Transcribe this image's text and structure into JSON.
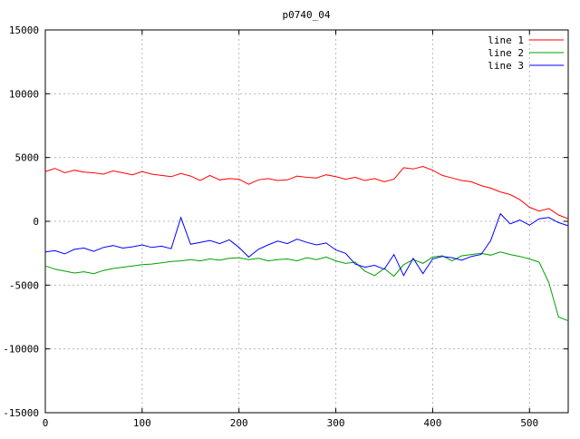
{
  "chart_data": {
    "type": "line",
    "title": "p0740_04",
    "xlabel": "",
    "ylabel": "",
    "xlim": [
      0,
      540
    ],
    "ylim": [
      -15000,
      15000
    ],
    "x_ticks": [
      0,
      100,
      200,
      300,
      400,
      500
    ],
    "y_ticks": [
      -15000,
      -10000,
      -5000,
      0,
      5000,
      10000,
      15000
    ],
    "grid": true,
    "grid_style": "dashed",
    "grid_color": "#b8b8b8",
    "border_color": "#000000",
    "background_color": "#ffffff",
    "legend_position": "top-right",
    "x": [
      0,
      10,
      20,
      30,
      40,
      50,
      60,
      70,
      80,
      90,
      100,
      110,
      120,
      130,
      140,
      150,
      160,
      170,
      180,
      190,
      200,
      210,
      220,
      230,
      240,
      250,
      260,
      270,
      280,
      290,
      300,
      310,
      320,
      330,
      340,
      350,
      360,
      370,
      380,
      390,
      400,
      410,
      420,
      430,
      440,
      450,
      460,
      470,
      480,
      490,
      500,
      510,
      520,
      530,
      540
    ],
    "series": [
      {
        "name": "line 1",
        "color": "#ff0000",
        "values": [
          3900,
          4150,
          3800,
          4000,
          3850,
          3800,
          3700,
          3950,
          3800,
          3650,
          3900,
          3700,
          3600,
          3500,
          3750,
          3550,
          3200,
          3600,
          3250,
          3350,
          3300,
          2900,
          3250,
          3350,
          3200,
          3250,
          3550,
          3450,
          3400,
          3650,
          3500,
          3300,
          3450,
          3200,
          3350,
          3100,
          3300,
          4200,
          4100,
          4300,
          4000,
          3600,
          3400,
          3200,
          3100,
          2800,
          2600,
          2300,
          2100,
          1700,
          1100,
          800,
          1000,
          500,
          200
        ]
      },
      {
        "name": "line 2",
        "color": "#00a000",
        "values": [
          -3500,
          -3750,
          -3900,
          -4050,
          -3950,
          -4100,
          -3850,
          -3700,
          -3600,
          -3500,
          -3400,
          -3350,
          -3250,
          -3150,
          -3100,
          -3000,
          -3100,
          -2950,
          -3050,
          -2900,
          -2850,
          -3000,
          -2900,
          -3100,
          -3000,
          -2950,
          -3100,
          -2850,
          -3000,
          -2800,
          -3100,
          -3300,
          -3200,
          -3900,
          -4250,
          -3700,
          -4300,
          -3400,
          -3000,
          -3300,
          -2800,
          -2700,
          -3100,
          -2700,
          -2600,
          -2500,
          -2650,
          -2400,
          -2600,
          -2750,
          -2950,
          -3200,
          -4800,
          -7500,
          -7800
        ]
      },
      {
        "name": "line 3",
        "color": "#0000ff",
        "values": [
          -2400,
          -2300,
          -2550,
          -2200,
          -2100,
          -2350,
          -2050,
          -1900,
          -2100,
          -2000,
          -1850,
          -2050,
          -1950,
          -2150,
          300,
          -1800,
          -1650,
          -1500,
          -1750,
          -1450,
          -2050,
          -2800,
          -2200,
          -1850,
          -1550,
          -1750,
          -1400,
          -1650,
          -1850,
          -1700,
          -2250,
          -2500,
          -3350,
          -3600,
          -3450,
          -3750,
          -2600,
          -4250,
          -2900,
          -4100,
          -2950,
          -2750,
          -2850,
          -3050,
          -2750,
          -2600,
          -1500,
          600,
          -200,
          100,
          -300,
          200,
          300,
          -100,
          -350
        ]
      }
    ]
  }
}
